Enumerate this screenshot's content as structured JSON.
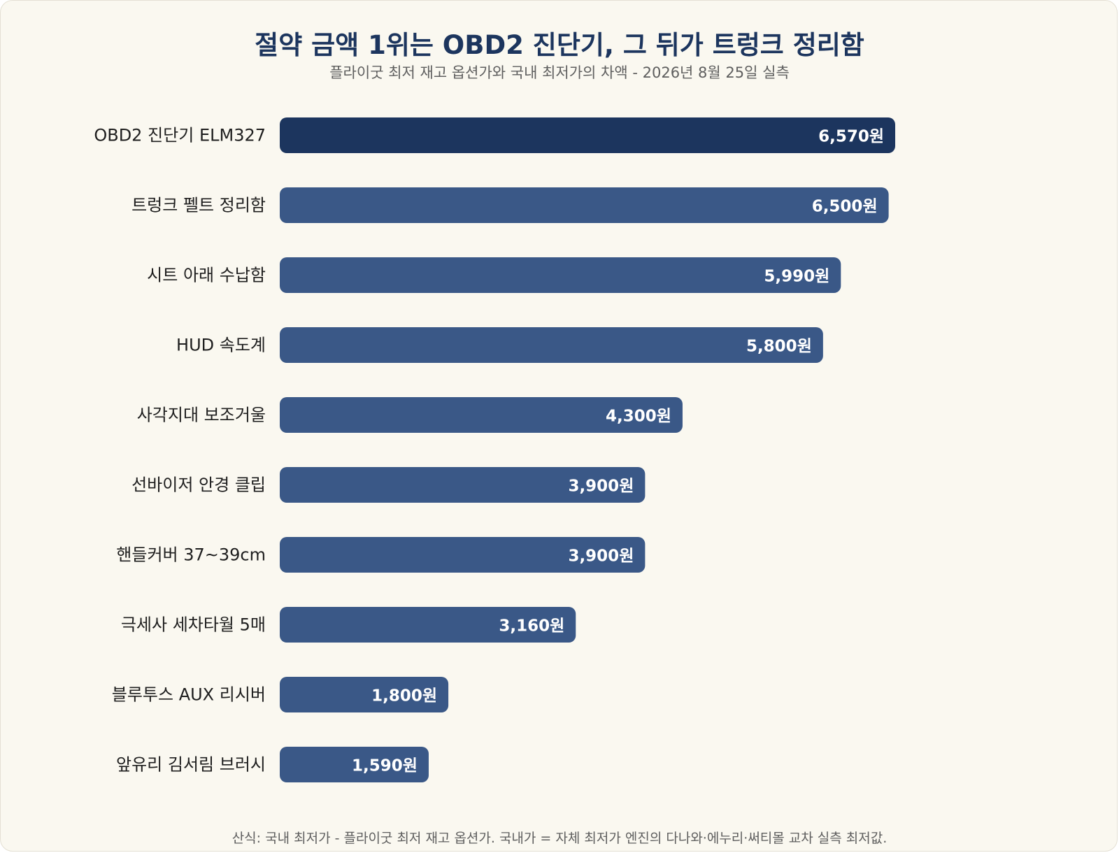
{
  "chart_data": {
    "type": "bar",
    "orientation": "horizontal",
    "title": "절약 금액 1위는 OBD2 진단기, 그 뒤가 트렁크 정리함",
    "subtitle": "플라이굿 최저 재고 옵션가와 국내 최저가의 차액 - 2026년 8월 25일 실측",
    "categories": [
      "OBD2 진단기 ELM327",
      "트렁크 펠트 정리함",
      "시트 아래 수납함",
      "HUD 속도계",
      "사각지대 보조거울",
      "선바이저 안경 클립",
      "핸들커버 37~39cm",
      "극세사 세차타월 5매",
      "블루투스 AUX 리시버",
      "앞유리 김서림 브러시"
    ],
    "values": [
      6570,
      6500,
      5990,
      5800,
      4300,
      3900,
      3900,
      3160,
      1800,
      1590
    ],
    "value_labels": [
      "6,570원",
      "6,500원",
      "5,990원",
      "5,800원",
      "4,300원",
      "3,900원",
      "3,900원",
      "3,160원",
      "1,800원",
      "1,590원"
    ],
    "xlim": [
      0,
      7570
    ],
    "grid": false,
    "legend": "none",
    "colors": {
      "highlight": "#1c355e",
      "bar": "#3a5887",
      "title": "#1c355e",
      "background": "#faf8f0"
    }
  },
  "footnote": "산식: 국내 최저가 - 플라이굿 최저 재고 옵션가. 국내가 = 자체 최저가 엔진의 다나와·에누리·써티몰 교차 실측 최저값."
}
